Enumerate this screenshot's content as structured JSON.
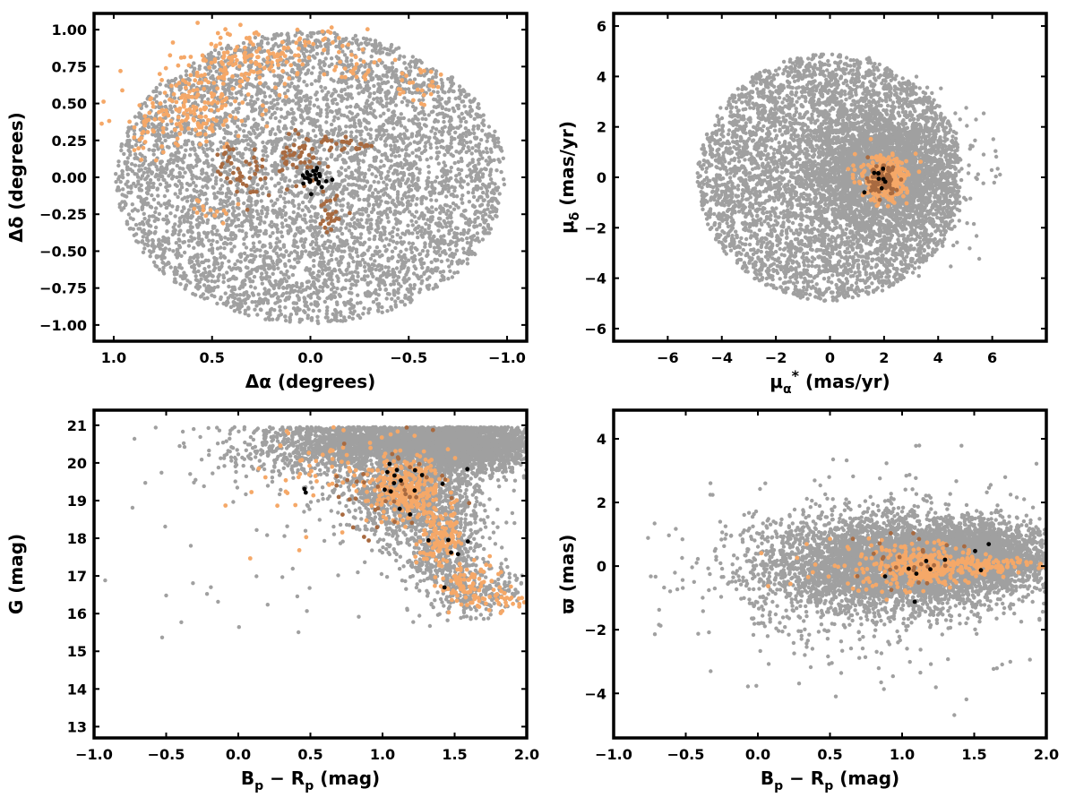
{
  "colors": {
    "field": "#a0a0a0",
    "members_light": "#f5a868",
    "members_dark": "#a86a40",
    "core": "#000000"
  },
  "chart_data": [
    {
      "id": "panel-sky",
      "type": "scatter",
      "x_ticks": [
        1.0,
        0.5,
        0.0,
        -0.5,
        -1.0
      ],
      "x_tick_labels": [
        "1.0",
        "0.5",
        "0.0",
        "−0.5",
        "−1.0"
      ],
      "y_ticks": [
        1.0,
        0.75,
        0.5,
        0.25,
        0.0,
        -0.25,
        -0.5,
        -0.75,
        -1.0
      ],
      "y_tick_labels": [
        "1.00",
        "0.75",
        "0.50",
        "0.25",
        "0.00",
        "−0.25",
        "−0.50",
        "−0.75",
        "−1.00"
      ],
      "xlim": [
        1.1,
        -1.1
      ],
      "ylim": [
        -1.11,
        1.11
      ],
      "xlabel": "Δα (degrees)",
      "ylabel": "Δδ (degrees)",
      "series": [
        {
          "role": "field",
          "color": "#a0a0a0",
          "distribution": "disk",
          "center": [
            0,
            0
          ],
          "radius": [
            0.99,
            0.99
          ],
          "n": 5200
        },
        {
          "role": "members",
          "color": "#f5a868",
          "clusters": [
            [
              0.62,
              0.45,
              0.18,
              0.12,
              150
            ],
            [
              0.45,
              0.72,
              0.12,
              0.1,
              70
            ],
            [
              0.3,
              0.82,
              0.15,
              0.08,
              50
            ],
            [
              0.18,
              0.78,
              0.1,
              0.08,
              40
            ],
            [
              -0.05,
              0.92,
              0.08,
              0.05,
              20
            ],
            [
              -0.25,
              0.75,
              0.08,
              0.06,
              25
            ],
            [
              -0.55,
              0.6,
              0.08,
              0.06,
              25
            ],
            [
              0.85,
              0.25,
              0.05,
              0.08,
              20
            ],
            [
              0.5,
              -0.22,
              0.05,
              0.04,
              15
            ]
          ]
        },
        {
          "role": "members",
          "color": "#a86a40",
          "clusters": [
            [
              0.05,
              0.15,
              0.06,
              0.08,
              40
            ],
            [
              -0.15,
              0.22,
              0.08,
              0.03,
              25
            ],
            [
              0.3,
              0.02,
              0.1,
              0.07,
              40
            ],
            [
              -0.1,
              -0.25,
              0.04,
              0.06,
              25
            ],
            [
              0.42,
              0.15,
              0.04,
              0.04,
              10
            ]
          ]
        },
        {
          "role": "core",
          "color": "#000000",
          "clusters": [
            [
              -0.02,
              -0.01,
              0.04,
              0.04,
              25
            ]
          ]
        }
      ]
    },
    {
      "id": "panel-pm",
      "type": "scatter",
      "x_ticks": [
        -6,
        -4,
        -2,
        0,
        2,
        4,
        6
      ],
      "x_tick_labels": [
        "−6",
        "−4",
        "−2",
        "0",
        "2",
        "4",
        "6"
      ],
      "y_ticks": [
        6,
        4,
        2,
        0,
        -2,
        -4,
        -6
      ],
      "y_tick_labels": [
        "6",
        "4",
        "2",
        "0",
        "−2",
        "−4",
        "−6"
      ],
      "xlim": [
        -8,
        8
      ],
      "ylim": [
        -6.5,
        6.5
      ],
      "xlabel": "μα* (mas/yr)",
      "ylabel": "μδ (mas/yr)",
      "series": [
        {
          "role": "field",
          "color": "#a0a0a0",
          "distribution": "disk",
          "center": [
            0,
            0
          ],
          "radius": [
            4.9,
            4.9
          ],
          "n": 4600
        },
        {
          "role": "field",
          "color": "#a0a0a0",
          "clusters": [
            [
              2.0,
              0.2,
              1.3,
              1.2,
              2500
            ]
          ]
        },
        {
          "role": "members",
          "color": "#f5a868",
          "clusters": [
            [
              2.0,
              -0.1,
              0.42,
              0.42,
              350
            ]
          ]
        },
        {
          "role": "members",
          "color": "#a86a40",
          "clusters": [
            [
              2.0,
              -0.1,
              0.28,
              0.28,
              80
            ]
          ]
        },
        {
          "role": "core",
          "color": "#000000",
          "clusters": [
            [
              1.9,
              -0.1,
              0.2,
              0.2,
              8
            ],
            [
              1.3,
              -0.6,
              0.02,
              0.02,
              1
            ]
          ]
        }
      ]
    },
    {
      "id": "panel-cmd",
      "type": "scatter",
      "x_ticks": [
        -1.0,
        -0.5,
        0.0,
        0.5,
        1.0,
        1.5,
        2.0
      ],
      "x_tick_labels": [
        "−1.0",
        "−0.5",
        "0.0",
        "0.5",
        "1.0",
        "1.5",
        "2.0"
      ],
      "y_ticks": [
        21,
        20,
        19,
        18,
        17,
        16,
        15,
        14,
        13
      ],
      "y_tick_labels": [
        "21",
        "20",
        "19",
        "18",
        "17",
        "16",
        "15",
        "14",
        "13"
      ],
      "xlim": [
        -1.0,
        2.0
      ],
      "ylim": [
        12.7,
        21.4
      ],
      "xlabel": "Bp − Rp (mag)",
      "ylabel": "G (mag)",
      "series": [
        {
          "role": "field",
          "color": "#a0a0a0",
          "clusters": [
            [
              1.2,
              20.5,
              0.45,
              0.3,
              2600
            ],
            [
              1.6,
              20.4,
              0.3,
              0.35,
              1200
            ],
            [
              1.2,
              19.2,
              0.25,
              0.6,
              1200
            ],
            [
              1.4,
              17.8,
              0.15,
              0.6,
              500
            ],
            [
              1.65,
              16.6,
              0.15,
              0.4,
              250
            ],
            [
              0.5,
              20.3,
              0.4,
              0.5,
              300
            ],
            [
              0.3,
              18.0,
              0.5,
              1.6,
              60
            ]
          ]
        },
        {
          "role": "members",
          "color": "#f5a868",
          "clusters": [
            [
              1.18,
              19.3,
              0.12,
              0.4,
              300
            ],
            [
              1.4,
              18.0,
              0.08,
              0.4,
              120
            ],
            [
              1.6,
              16.8,
              0.12,
              0.35,
              100
            ],
            [
              1.85,
              16.3,
              0.06,
              0.15,
              20
            ],
            [
              0.8,
              20.0,
              0.3,
              0.6,
              60
            ],
            [
              0.3,
              18.5,
              0.3,
              0.8,
              10
            ]
          ]
        },
        {
          "role": "members",
          "color": "#a86a40",
          "clusters": [
            [
              1.1,
              19.5,
              0.2,
              0.6,
              40
            ]
          ]
        },
        {
          "role": "core",
          "color": "#000000",
          "clusters": [
            [
              1.15,
              19.5,
              0.12,
              0.4,
              15
            ],
            [
              1.4,
              17.5,
              0.08,
              0.5,
              6
            ],
            [
              0.45,
              19.3,
              0.03,
              0.05,
              2
            ]
          ]
        }
      ]
    },
    {
      "id": "panel-parallax",
      "type": "scatter",
      "x_ticks": [
        -1.0,
        -0.5,
        0.0,
        0.5,
        1.0,
        1.5,
        2.0
      ],
      "x_tick_labels": [
        "−1.0",
        "−0.5",
        "0.0",
        "0.5",
        "1.0",
        "1.5",
        "2.0"
      ],
      "y_ticks": [
        4,
        2,
        0,
        -2,
        -4
      ],
      "y_tick_labels": [
        "4",
        "2",
        "0",
        "−2",
        "−4"
      ],
      "xlim": [
        -1.0,
        2.0
      ],
      "ylim": [
        -5.4,
        4.9
      ],
      "xlabel": "Bp − Rp (mag)",
      "ylabel": "ϖ (mas)",
      "series": [
        {
          "role": "field",
          "color": "#a0a0a0",
          "clusters": [
            [
              1.0,
              0.1,
              0.4,
              0.7,
              3800
            ],
            [
              1.55,
              0.3,
              0.3,
              0.5,
              2000
            ],
            [
              0.5,
              -0.1,
              0.35,
              0.9,
              700
            ],
            [
              0.8,
              -0.3,
              0.7,
              1.6,
              400
            ]
          ]
        },
        {
          "role": "members",
          "color": "#f5a868",
          "clusters": [
            [
              1.15,
              0.0,
              0.18,
              0.3,
              300
            ],
            [
              1.6,
              0.0,
              0.2,
              0.15,
              100
            ],
            [
              0.7,
              0.0,
              0.3,
              0.5,
              40
            ]
          ]
        },
        {
          "role": "members",
          "color": "#a86a40",
          "clusters": [
            [
              1.05,
              0.2,
              0.2,
              0.4,
              25
            ]
          ]
        },
        {
          "role": "core",
          "color": "#000000",
          "clusters": [
            [
              1.15,
              0.0,
              0.25,
              0.4,
              10
            ]
          ]
        }
      ]
    }
  ]
}
